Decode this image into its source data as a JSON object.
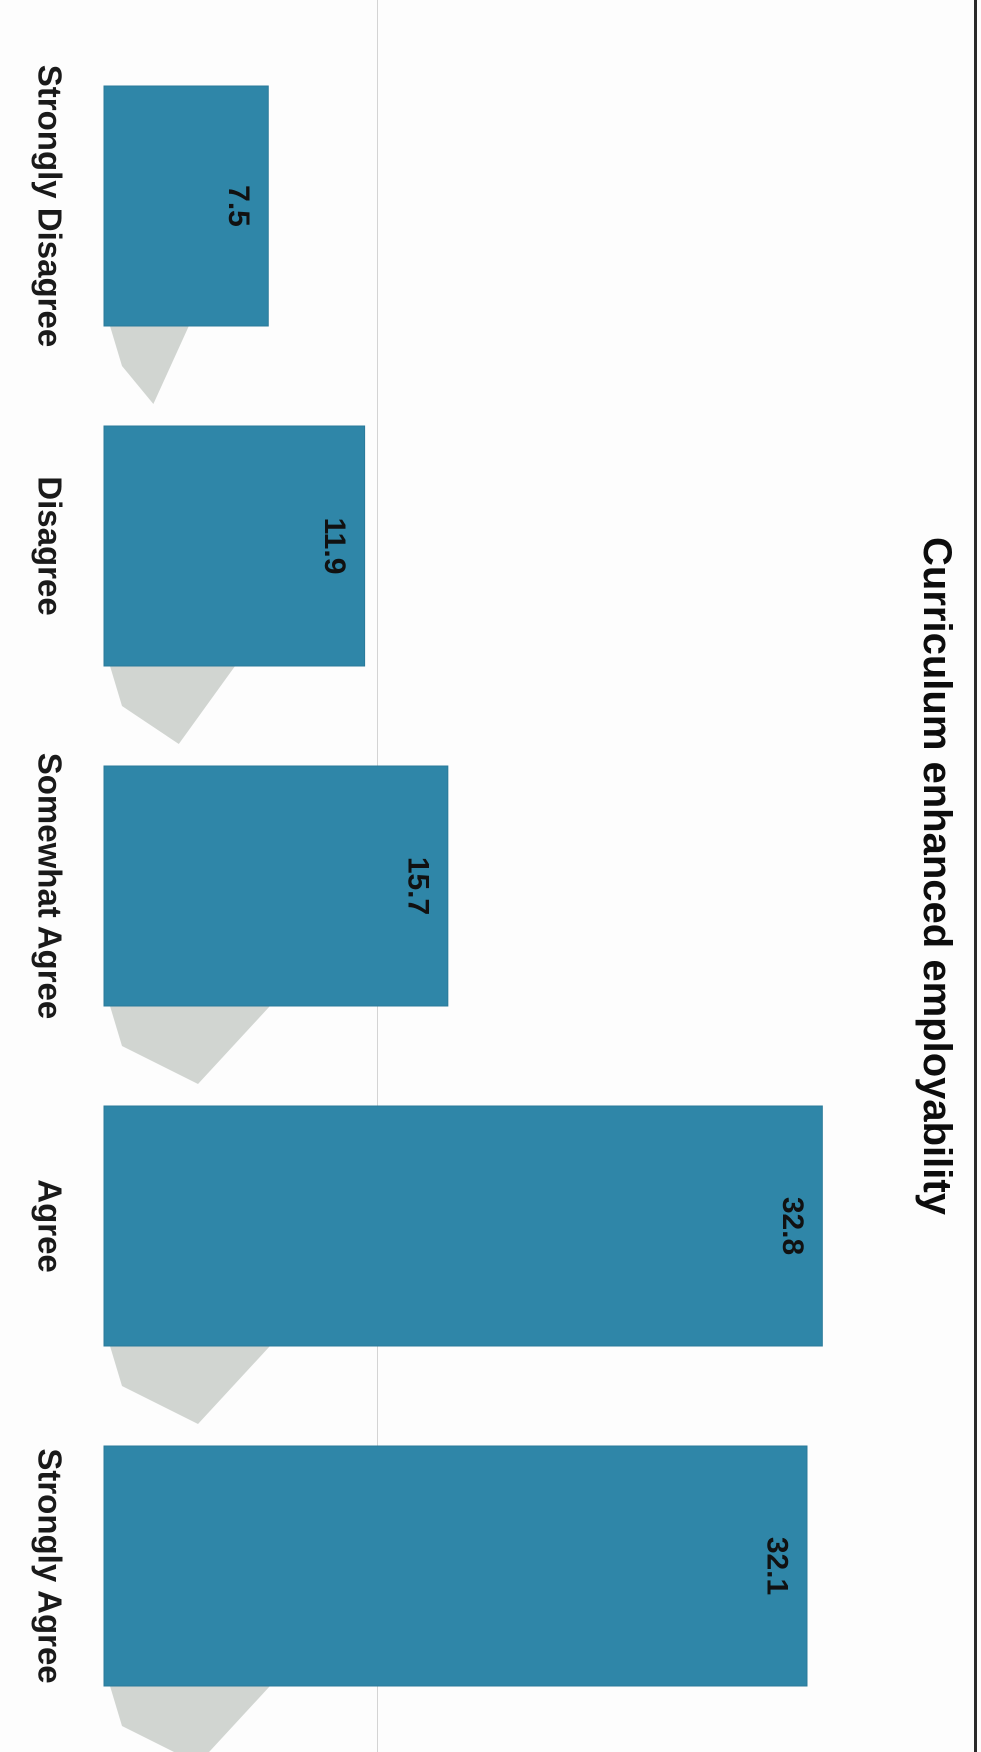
{
  "chart_data": {
    "type": "bar",
    "orientation": "rotated-90-clockwise",
    "title": "Curriculum enhanced employability",
    "categories": [
      "Strongly Disagree",
      "Disagree",
      "Somewhat Agree",
      "Agree",
      "Strongly Agree"
    ],
    "values": [
      7.5,
      11.9,
      15.7,
      32.8,
      32.1
    ],
    "value_labels": [
      "7.5",
      "11.9",
      "15.7",
      "32.8",
      "32.1"
    ],
    "xlabel": "",
    "ylabel": "",
    "ylim": [
      0,
      35
    ],
    "grid": false,
    "legend": "none",
    "colors": {
      "bar": "#2f86a8",
      "bar_edge": "#2a7a9a",
      "shadow": "#c9cec9"
    }
  }
}
